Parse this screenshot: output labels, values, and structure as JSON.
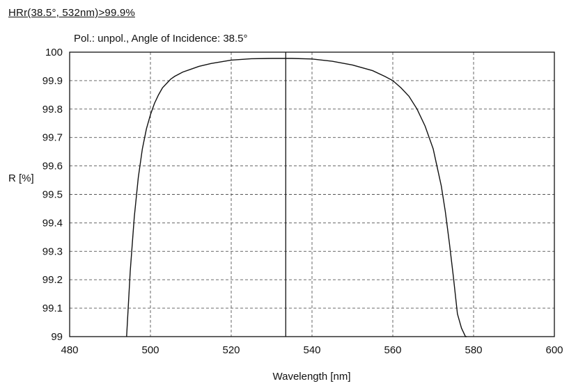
{
  "chart_data": {
    "type": "line",
    "title": "HRr(38.5°, 532nm)>99.9%",
    "subtitle": "Pol.: unpol., Angle of Incidence: 38.5°",
    "xlabel": "Wavelength [nm]",
    "ylabel": "R [%]",
    "xlim": [
      480,
      600
    ],
    "ylim": [
      99,
      100
    ],
    "xticks": [
      "480",
      "500",
      "520",
      "540",
      "560",
      "580",
      "600"
    ],
    "yticks": [
      "99",
      "99.1",
      "99.2",
      "99.3",
      "99.4",
      "99.5",
      "99.6",
      "99.7",
      "99.8",
      "99.9",
      "100"
    ],
    "grid": true,
    "series": [
      {
        "x": [
          494.1,
          495,
          496,
          497,
          498,
          499,
          500,
          501,
          502,
          503,
          504,
          505,
          506,
          508,
          510,
          512,
          515,
          520,
          525,
          530,
          535,
          540,
          545,
          550,
          555,
          558,
          560,
          562,
          564,
          566,
          568,
          570,
          572,
          573,
          574,
          575,
          576,
          577,
          578,
          578.3
        ],
        "y": [
          99.0,
          99.23,
          99.42,
          99.56,
          99.66,
          99.73,
          99.78,
          99.82,
          99.85,
          99.875,
          99.89,
          99.905,
          99.915,
          99.93,
          99.94,
          99.95,
          99.96,
          99.972,
          99.977,
          99.978,
          99.978,
          99.976,
          99.968,
          99.955,
          99.935,
          99.915,
          99.9,
          99.875,
          99.845,
          99.8,
          99.74,
          99.66,
          99.53,
          99.44,
          99.33,
          99.21,
          99.08,
          99.03,
          99.0,
          99.0
        ]
      }
    ],
    "marker_line": {
      "x": 533.5
    }
  }
}
